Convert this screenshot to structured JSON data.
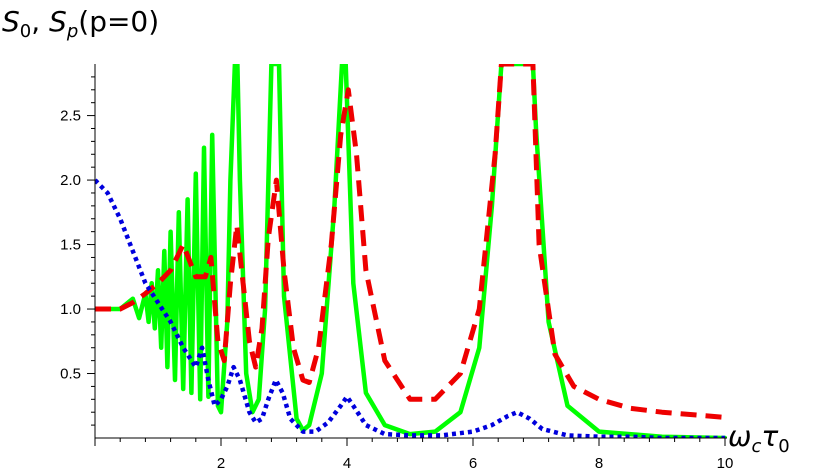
{
  "chart_data": {
    "type": "line",
    "title": "",
    "ylabel_parts": [
      "S",
      "0",
      ", ",
      "S",
      "p",
      "(p=0)"
    ],
    "xlabel_parts": [
      "ω",
      "c",
      "τ",
      "0"
    ],
    "xlim": [
      0,
      10
    ],
    "ylim": [
      0,
      2.9
    ],
    "xticks": [
      2,
      4,
      6,
      8,
      10
    ],
    "xtick_labels": [
      "2",
      "4",
      "6",
      "8",
      "10"
    ],
    "yticks": [
      0.5,
      1.0,
      1.5,
      2.0,
      2.5
    ],
    "ytick_labels": [
      "0.5",
      "1.0",
      "1.5",
      "2.0",
      "2.5"
    ],
    "grid": false,
    "legend": "none",
    "series": [
      {
        "style": "solid",
        "color": "#00ff00",
        "x": [
          0,
          0.4,
          0.6,
          0.7,
          0.8,
          0.85,
          0.9,
          0.95,
          1.0,
          1.05,
          1.1,
          1.15,
          1.2,
          1.27,
          1.33,
          1.4,
          1.47,
          1.53,
          1.6,
          1.67,
          1.73,
          1.8,
          1.86,
          1.95,
          2.0,
          2.1,
          2.15,
          2.22,
          2.26,
          2.3,
          2.4,
          2.5,
          2.6,
          2.7,
          2.8,
          2.86,
          2.92,
          3.0,
          3.2,
          3.3,
          3.4,
          3.6,
          3.8,
          3.92,
          3.98,
          4.1,
          4.3,
          4.6,
          5.0,
          5.4,
          5.8,
          6.1,
          6.3,
          6.45,
          6.5,
          6.95,
          7.0,
          7.2,
          7.5,
          8.0,
          9.0,
          10.0
        ],
        "y": [
          1.0,
          1.0,
          1.08,
          0.93,
          1.12,
          0.9,
          1.2,
          0.85,
          1.3,
          0.7,
          1.45,
          0.55,
          1.6,
          0.45,
          1.75,
          0.38,
          1.85,
          0.35,
          2.05,
          0.3,
          2.25,
          0.32,
          2.35,
          0.25,
          0.2,
          0.9,
          2.0,
          2.9,
          2.9,
          2.0,
          0.5,
          0.2,
          0.3,
          1.0,
          2.9,
          2.9,
          2.9,
          1.1,
          0.15,
          0.06,
          0.1,
          0.5,
          1.8,
          2.9,
          2.9,
          1.2,
          0.35,
          0.1,
          0.03,
          0.05,
          0.2,
          0.7,
          1.8,
          2.9,
          2.9,
          2.9,
          2.4,
          0.9,
          0.25,
          0.05,
          0.01,
          0.0
        ]
      },
      {
        "style": "dashed",
        "color": "#ee0000",
        "x": [
          0,
          0.4,
          0.6,
          0.8,
          1.0,
          1.2,
          1.4,
          1.6,
          1.75,
          1.84,
          1.95,
          2.05,
          2.15,
          2.25,
          2.35,
          2.45,
          2.55,
          2.65,
          2.75,
          2.88,
          3.0,
          3.15,
          3.3,
          3.4,
          3.55,
          3.75,
          3.9,
          4.02,
          4.15,
          4.3,
          4.6,
          5.0,
          5.4,
          5.8,
          6.1,
          6.35,
          6.45,
          6.55,
          6.8,
          6.95,
          7.05,
          7.3,
          7.6,
          8.0,
          8.5,
          9.0,
          10.0
        ],
        "y": [
          1.0,
          1.0,
          1.05,
          1.12,
          1.2,
          1.3,
          1.5,
          1.25,
          1.25,
          1.4,
          0.75,
          0.6,
          1.2,
          1.65,
          1.2,
          0.75,
          0.55,
          0.85,
          1.55,
          2.0,
          1.3,
          0.7,
          0.45,
          0.43,
          0.7,
          1.5,
          2.35,
          2.7,
          2.2,
          1.3,
          0.6,
          0.3,
          0.3,
          0.5,
          1.0,
          2.2,
          2.9,
          2.9,
          2.9,
          2.9,
          1.5,
          0.65,
          0.4,
          0.3,
          0.23,
          0.2,
          0.16
        ]
      },
      {
        "style": "dotted",
        "color": "#0000dd",
        "x": [
          0,
          0.2,
          0.4,
          0.6,
          0.8,
          1.0,
          1.2,
          1.4,
          1.6,
          1.7,
          1.8,
          1.9,
          2.0,
          2.1,
          2.2,
          2.3,
          2.45,
          2.55,
          2.65,
          2.75,
          2.87,
          2.98,
          3.1,
          3.3,
          3.5,
          3.7,
          3.9,
          4.0,
          4.1,
          4.3,
          4.6,
          5.0,
          5.5,
          6.0,
          6.3,
          6.55,
          6.7,
          6.9,
          7.1,
          7.5,
          8.0,
          8.5,
          9.0,
          10.0
        ],
        "y": [
          2.0,
          1.9,
          1.7,
          1.45,
          1.2,
          1.05,
          0.9,
          0.7,
          0.55,
          0.7,
          0.45,
          0.25,
          0.3,
          0.4,
          0.55,
          0.45,
          0.2,
          0.12,
          0.15,
          0.3,
          0.45,
          0.35,
          0.15,
          0.05,
          0.05,
          0.12,
          0.25,
          0.32,
          0.25,
          0.1,
          0.03,
          0.02,
          0.02,
          0.05,
          0.1,
          0.17,
          0.2,
          0.15,
          0.07,
          0.02,
          0.01,
          0.01,
          0.0,
          0.0
        ]
      }
    ]
  }
}
